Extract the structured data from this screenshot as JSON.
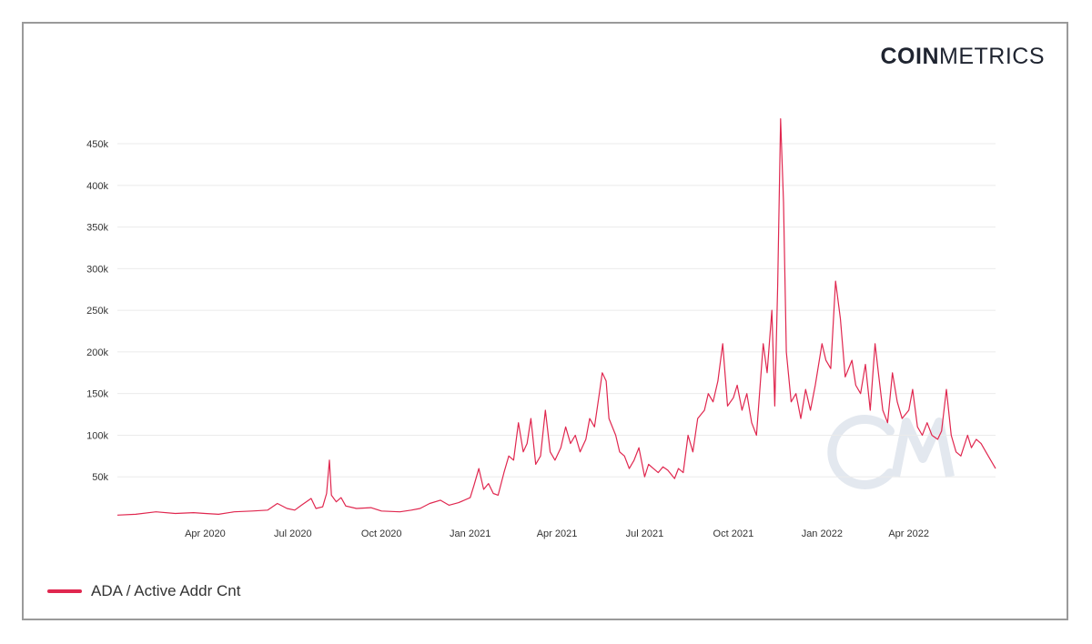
{
  "logo": {
    "bold": "COIN",
    "light": "METRICS"
  },
  "colors": {
    "series": "#e0274f",
    "grid": "#ebebeb",
    "watermark": "#e3e8ef"
  },
  "legend": {
    "label": "ADA / Active Addr Cnt"
  },
  "chart_data": {
    "type": "line",
    "title": "",
    "xlabel": "",
    "ylabel": "",
    "grid": true,
    "legend_position": "bottom-left",
    "xlim": [
      "2020-01-01",
      "2022-06-30"
    ],
    "ylim": [
      0,
      485000
    ],
    "y_ticks": [
      50000,
      100000,
      150000,
      200000,
      250000,
      300000,
      350000,
      400000,
      450000
    ],
    "y_tick_labels": [
      "50k",
      "100k",
      "150k",
      "200k",
      "250k",
      "300k",
      "350k",
      "400k",
      "450k"
    ],
    "x_ticks": [
      "2020-04-01",
      "2020-07-01",
      "2020-10-01",
      "2021-01-01",
      "2021-04-01",
      "2021-07-01",
      "2021-10-01",
      "2022-01-01",
      "2022-04-01"
    ],
    "x_tick_labels": [
      "Apr 2020",
      "Jul 2020",
      "Oct 2020",
      "Jan 2021",
      "Apr 2021",
      "Jul 2021",
      "Oct 2021",
      "Jan 2022",
      "Apr 2022"
    ],
    "series": [
      {
        "name": "ADA / Active Addr Cnt",
        "x": [
          "2020-01-01",
          "2020-01-20",
          "2020-02-10",
          "2020-03-01",
          "2020-03-20",
          "2020-04-01",
          "2020-04-15",
          "2020-05-01",
          "2020-05-20",
          "2020-06-05",
          "2020-06-15",
          "2020-06-25",
          "2020-07-03",
          "2020-07-10",
          "2020-07-20",
          "2020-07-25",
          "2020-08-01",
          "2020-08-05",
          "2020-08-08",
          "2020-08-10",
          "2020-08-15",
          "2020-08-20",
          "2020-08-25",
          "2020-09-05",
          "2020-09-20",
          "2020-10-01",
          "2020-10-20",
          "2020-11-01",
          "2020-11-10",
          "2020-11-20",
          "2020-12-01",
          "2020-12-10",
          "2020-12-20",
          "2021-01-01",
          "2021-01-05",
          "2021-01-10",
          "2021-01-15",
          "2021-01-20",
          "2021-01-25",
          "2021-01-30",
          "2021-02-05",
          "2021-02-10",
          "2021-02-15",
          "2021-02-20",
          "2021-02-25",
          "2021-03-01",
          "2021-03-05",
          "2021-03-10",
          "2021-03-15",
          "2021-03-20",
          "2021-03-25",
          "2021-03-30",
          "2021-04-05",
          "2021-04-10",
          "2021-04-15",
          "2021-04-20",
          "2021-04-25",
          "2021-05-01",
          "2021-05-05",
          "2021-05-10",
          "2021-05-15",
          "2021-05-18",
          "2021-05-22",
          "2021-05-25",
          "2021-06-01",
          "2021-06-05",
          "2021-06-10",
          "2021-06-15",
          "2021-06-20",
          "2021-06-25",
          "2021-07-01",
          "2021-07-05",
          "2021-07-10",
          "2021-07-15",
          "2021-07-20",
          "2021-07-25",
          "2021-08-01",
          "2021-08-05",
          "2021-08-10",
          "2021-08-15",
          "2021-08-20",
          "2021-08-25",
          "2021-09-01",
          "2021-09-05",
          "2021-09-10",
          "2021-09-15",
          "2021-09-20",
          "2021-09-25",
          "2021-10-01",
          "2021-10-05",
          "2021-10-10",
          "2021-10-15",
          "2021-10-20",
          "2021-10-25",
          "2021-11-01",
          "2021-11-05",
          "2021-11-10",
          "2021-11-13",
          "2021-11-16",
          "2021-11-19",
          "2021-11-22",
          "2021-11-25",
          "2021-11-30",
          "2021-12-05",
          "2021-12-10",
          "2021-12-15",
          "2021-12-20",
          "2021-12-25",
          "2022-01-01",
          "2022-01-05",
          "2022-01-10",
          "2022-01-15",
          "2022-01-20",
          "2022-01-25",
          "2022-02-01",
          "2022-02-05",
          "2022-02-10",
          "2022-02-15",
          "2022-02-20",
          "2022-02-25",
          "2022-03-01",
          "2022-03-05",
          "2022-03-10",
          "2022-03-15",
          "2022-03-20",
          "2022-03-25",
          "2022-04-01",
          "2022-04-05",
          "2022-04-10",
          "2022-04-15",
          "2022-04-20",
          "2022-04-25",
          "2022-05-01",
          "2022-05-05",
          "2022-05-10",
          "2022-05-15",
          "2022-05-20",
          "2022-05-25",
          "2022-06-01",
          "2022-06-05",
          "2022-06-10",
          "2022-06-15",
          "2022-06-20",
          "2022-06-25",
          "2022-06-30"
        ],
        "values": [
          4000,
          5000,
          8000,
          6000,
          7000,
          6000,
          5000,
          8000,
          9000,
          10000,
          18000,
          12000,
          10000,
          16000,
          24000,
          12000,
          14000,
          30000,
          70000,
          28000,
          20000,
          25000,
          15000,
          12000,
          13000,
          9000,
          8000,
          10000,
          12000,
          18000,
          22000,
          16000,
          19000,
          25000,
          40000,
          60000,
          35000,
          42000,
          30000,
          28000,
          55000,
          75000,
          70000,
          115000,
          80000,
          90000,
          120000,
          65000,
          75000,
          130000,
          80000,
          70000,
          85000,
          110000,
          90000,
          100000,
          80000,
          95000,
          120000,
          110000,
          150000,
          175000,
          165000,
          120000,
          100000,
          80000,
          75000,
          60000,
          70000,
          85000,
          50000,
          65000,
          60000,
          55000,
          62000,
          58000,
          48000,
          60000,
          55000,
          100000,
          80000,
          120000,
          130000,
          150000,
          140000,
          165000,
          210000,
          135000,
          145000,
          160000,
          130000,
          150000,
          115000,
          100000,
          210000,
          175000,
          250000,
          135000,
          280000,
          480000,
          380000,
          200000,
          140000,
          150000,
          120000,
          155000,
          130000,
          160000,
          210000,
          190000,
          180000,
          285000,
          240000,
          170000,
          190000,
          160000,
          150000,
          185000,
          130000,
          210000,
          170000,
          130000,
          115000,
          175000,
          140000,
          120000,
          130000,
          155000,
          110000,
          100000,
          115000,
          100000,
          95000,
          105000,
          155000,
          100000,
          80000,
          75000,
          100000,
          85000,
          95000,
          90000,
          80000,
          70000,
          60000
        ]
      }
    ]
  }
}
